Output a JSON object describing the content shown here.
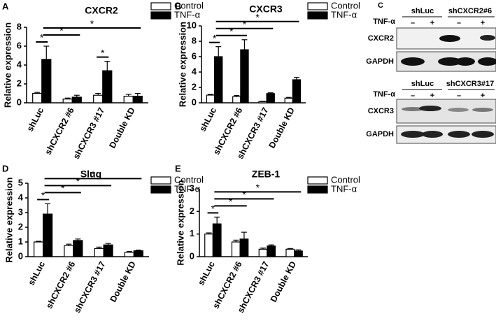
{
  "chart_data": [
    {
      "type": "bar",
      "panel": "A",
      "title": "CXCR2",
      "ylabel": "Relative expression",
      "categories": [
        "shLuc",
        "shCXCR2 #6",
        "shCXCR3 #17",
        "Double KD"
      ],
      "series": [
        {
          "name": "Control",
          "color": "#ffffff",
          "values": [
            1,
            0.4,
            0.8,
            0.7
          ],
          "errors": [
            0.1,
            0.1,
            0.2,
            0.2
          ]
        },
        {
          "name": "TNF-α",
          "color": "#000000",
          "values": [
            4.6,
            0.6,
            3.4,
            0.7
          ],
          "errors": [
            1.4,
            0.2,
            1.0,
            0.3
          ]
        }
      ],
      "ylim": [
        0,
        8
      ],
      "yticks": [
        0,
        2,
        4,
        6,
        8
      ],
      "significance": [
        {
          "text": "*",
          "groups": [
            0,
            0
          ]
        },
        {
          "text": "*",
          "groups": [
            0,
            1
          ]
        },
        {
          "text": "*",
          "groups": [
            0,
            3
          ]
        },
        {
          "text": "*",
          "groups": [
            2,
            2
          ]
        }
      ]
    },
    {
      "type": "bar",
      "panel": "B",
      "title": "CXCR3",
      "ylabel": "Relative expression",
      "categories": [
        "shLuc",
        "shCXCR2 #6",
        "shCXCR3 #17",
        "Double KD"
      ],
      "series": [
        {
          "name": "Control",
          "color": "#ffffff",
          "values": [
            1,
            0.8,
            0.15,
            0.6
          ],
          "errors": [
            0.1,
            0.15,
            0.05,
            0.1
          ]
        },
        {
          "name": "TNF-α",
          "color": "#000000",
          "values": [
            6,
            6.9,
            1.2,
            3.0
          ],
          "errors": [
            1.3,
            1.3,
            0.1,
            0.3
          ]
        }
      ],
      "ylim": [
        0,
        10
      ],
      "yticks": [
        0,
        2,
        4,
        6,
        8,
        10
      ],
      "significance": [
        {
          "text": "*",
          "groups": [
            0,
            0
          ]
        },
        {
          "text": "*",
          "groups": [
            0,
            1
          ]
        },
        {
          "text": "*",
          "groups": [
            0,
            2
          ]
        },
        {
          "text": "*",
          "groups": [
            0,
            3
          ]
        }
      ]
    },
    {
      "type": "bar",
      "panel": "D",
      "title": "Slug",
      "ylabel": "Relative expression",
      "categories": [
        "shLuc",
        "shCXCR2 #6",
        "shCXCR3 #17",
        "Double KD"
      ],
      "series": [
        {
          "name": "Control",
          "color": "#ffffff",
          "values": [
            1,
            0.75,
            0.55,
            0.3
          ],
          "errors": [
            0.05,
            0.1,
            0.1,
            0.05
          ]
        },
        {
          "name": "TNF-α",
          "color": "#000000",
          "values": [
            2.9,
            1.1,
            0.8,
            0.4
          ],
          "errors": [
            0.7,
            0.1,
            0.1,
            0.05
          ]
        }
      ],
      "ylim": [
        0,
        5
      ],
      "yticks": [
        0,
        1,
        2,
        3,
        4,
        5
      ],
      "significance": [
        {
          "text": "*",
          "groups": [
            0,
            0
          ]
        },
        {
          "text": "*",
          "groups": [
            0,
            1
          ]
        },
        {
          "text": "*",
          "groups": [
            0,
            2
          ]
        },
        {
          "text": "*",
          "groups": [
            0,
            3
          ]
        }
      ]
    },
    {
      "type": "bar",
      "panel": "E",
      "title": "ZEB-1",
      "ylabel": "Relative expression",
      "categories": [
        "shLuc",
        "shCXCR2 #6",
        "shCXCR3 #17",
        "Double KD"
      ],
      "series": [
        {
          "name": "Control",
          "color": "#ffffff",
          "values": [
            1,
            0.65,
            0.33,
            0.33
          ],
          "errors": [
            0.05,
            0.08,
            0.05,
            0.03
          ]
        },
        {
          "name": "TNF-α",
          "color": "#000000",
          "values": [
            1.45,
            0.78,
            0.47,
            0.25
          ],
          "errors": [
            0.3,
            0.3,
            0.05,
            0.05
          ]
        }
      ],
      "ylim": [
        0,
        3
      ],
      "yticks": [
        0,
        1,
        2,
        3
      ],
      "significance": [
        {
          "text": "*",
          "groups": [
            0,
            0
          ]
        },
        {
          "text": "*",
          "groups": [
            0,
            1
          ]
        },
        {
          "text": "*",
          "groups": [
            0,
            2
          ]
        },
        {
          "text": "*",
          "groups": [
            0,
            3
          ]
        }
      ]
    }
  ],
  "blot": {
    "panel": "C",
    "treatment": "TNF-α",
    "signs": [
      "–",
      "+",
      "–",
      "+"
    ],
    "blots": [
      {
        "groups": [
          "shLuc",
          "shCXCR2#6"
        ],
        "rows": [
          "CXCR2",
          "GAPDH"
        ]
      },
      {
        "groups": [
          "shLuc",
          "shCXCR3#17"
        ],
        "rows": [
          "CXCR3",
          "GAPDH"
        ]
      }
    ]
  }
}
